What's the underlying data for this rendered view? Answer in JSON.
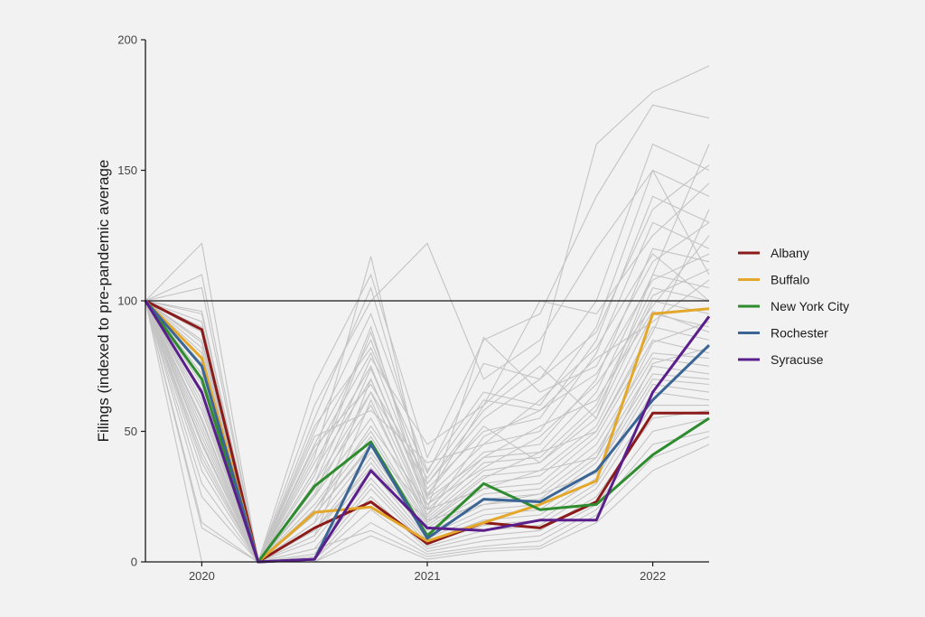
{
  "chart_data": {
    "type": "line",
    "ylabel": "Filings (indexed to pre-pandemic average",
    "xlabel": "",
    "ylim": [
      0,
      200
    ],
    "yticks": [
      0,
      50,
      100,
      150,
      200
    ],
    "xlim": [
      2019.75,
      2022.25
    ],
    "xticks": [
      2020,
      2021,
      2022
    ],
    "reference_line": 100,
    "grid": false,
    "legend_position": "right",
    "x": [
      2019.75,
      2020.0,
      2020.25,
      2020.5,
      2020.75,
      2021.0,
      2021.25,
      2021.5,
      2021.75,
      2022.0,
      2022.25
    ],
    "series": [
      {
        "name": "Albany",
        "color": "#8b1a1a",
        "values": [
          100,
          89,
          0,
          13,
          23,
          7,
          15,
          13,
          23,
          57,
          57
        ]
      },
      {
        "name": "Buffalo",
        "color": "#e3a82b",
        "values": [
          100,
          78,
          0,
          19,
          21,
          8,
          15,
          22,
          31,
          95,
          97
        ]
      },
      {
        "name": "New York City",
        "color": "#2e8b2e",
        "values": [
          100,
          70,
          0,
          29,
          46,
          10,
          30,
          20,
          22,
          41,
          55
        ]
      },
      {
        "name": "Rochester",
        "color": "#3a6595",
        "values": [
          100,
          75,
          0,
          1,
          45,
          9,
          24,
          23,
          35,
          62,
          83
        ]
      },
      {
        "name": "Syracuse",
        "color": "#5b1f8c",
        "values": [
          100,
          65,
          0,
          1,
          35,
          13,
          12,
          16,
          16,
          65,
          94
        ]
      }
    ],
    "background_series": [
      [
        100,
        122,
        0,
        40,
        117,
        25,
        60,
        80,
        160,
        180,
        190
      ],
      [
        100,
        110,
        0,
        68,
        110,
        40,
        85,
        95,
        140,
        175,
        170
      ],
      [
        100,
        95,
        0,
        55,
        105,
        30,
        55,
        70,
        100,
        160,
        150
      ],
      [
        100,
        90,
        0,
        50,
        95,
        35,
        65,
        60,
        90,
        150,
        140
      ],
      [
        100,
        85,
        0,
        45,
        85,
        28,
        50,
        55,
        85,
        140,
        130
      ],
      [
        100,
        80,
        0,
        42,
        80,
        25,
        45,
        50,
        80,
        130,
        120
      ],
      [
        100,
        75,
        0,
        38,
        75,
        22,
        42,
        45,
        70,
        120,
        115
      ],
      [
        100,
        70,
        0,
        35,
        70,
        20,
        40,
        42,
        65,
        110,
        105
      ],
      [
        100,
        68,
        0,
        30,
        65,
        18,
        38,
        40,
        60,
        105,
        100
      ],
      [
        100,
        65,
        0,
        28,
        60,
        17,
        35,
        38,
        55,
        100,
        95
      ],
      [
        100,
        62,
        0,
        25,
        55,
        16,
        33,
        35,
        52,
        95,
        90
      ],
      [
        100,
        60,
        0,
        22,
        50,
        15,
        30,
        33,
        50,
        90,
        85
      ],
      [
        100,
        58,
        0,
        20,
        48,
        14,
        28,
        30,
        48,
        85,
        80
      ],
      [
        100,
        55,
        0,
        18,
        45,
        13,
        26,
        28,
        45,
        80,
        78
      ],
      [
        100,
        52,
        0,
        15,
        42,
        12,
        24,
        26,
        42,
        78,
        75
      ],
      [
        100,
        50,
        0,
        12,
        40,
        11,
        22,
        24,
        40,
        75,
        72
      ],
      [
        100,
        48,
        0,
        10,
        38,
        10,
        20,
        22,
        38,
        72,
        70
      ],
      [
        100,
        45,
        0,
        8,
        35,
        9,
        18,
        20,
        35,
        70,
        68
      ],
      [
        100,
        42,
        0,
        5,
        32,
        8,
        16,
        18,
        32,
        68,
        65
      ],
      [
        100,
        40,
        0,
        3,
        30,
        7,
        14,
        16,
        30,
        65,
        62
      ],
      [
        100,
        35,
        0,
        2,
        28,
        6,
        12,
        14,
        28,
        60,
        60
      ],
      [
        100,
        30,
        0,
        1,
        25,
        5,
        10,
        12,
        25,
        55,
        58
      ],
      [
        100,
        25,
        0,
        1,
        20,
        4,
        8,
        10,
        22,
        50,
        55
      ],
      [
        100,
        15,
        0,
        0,
        15,
        3,
        6,
        8,
        20,
        45,
        50
      ],
      [
        100,
        13,
        0,
        5,
        12,
        2,
        5,
        6,
        18,
        40,
        48
      ],
      [
        100,
        0,
        0,
        0,
        10,
        1,
        4,
        5,
        15,
        35,
        45
      ],
      [
        100,
        105,
        0,
        60,
        100,
        122,
        70,
        85,
        120,
        150,
        110
      ],
      [
        100,
        88,
        0,
        35,
        90,
        20,
        86,
        65,
        75,
        115,
        130
      ],
      [
        100,
        72,
        0,
        30,
        78,
        45,
        60,
        100,
        95,
        125,
        145
      ],
      [
        100,
        66,
        0,
        25,
        65,
        30,
        58,
        75,
        55,
        110,
        160
      ],
      [
        100,
        82,
        0,
        48,
        58,
        38,
        45,
        62,
        82,
        118,
        100
      ],
      [
        100,
        92,
        0,
        20,
        52,
        22,
        36,
        48,
        68,
        98,
        125
      ],
      [
        100,
        76,
        0,
        15,
        70,
        18,
        48,
        58,
        78,
        92,
        108
      ],
      [
        100,
        58,
        0,
        10,
        62,
        15,
        32,
        42,
        50,
        88,
        135
      ],
      [
        100,
        64,
        0,
        33,
        88,
        26,
        52,
        38,
        58,
        102,
        112
      ],
      [
        100,
        54,
        0,
        26,
        74,
        24,
        40,
        52,
        62,
        96,
        88
      ],
      [
        100,
        46,
        0,
        18,
        44,
        20,
        28,
        35,
        40,
        84,
        92
      ],
      [
        100,
        38,
        0,
        12,
        36,
        16,
        22,
        26,
        34,
        76,
        82
      ],
      [
        100,
        84,
        0,
        52,
        82,
        34,
        76,
        70,
        88,
        135,
        152
      ],
      [
        100,
        96,
        0,
        44,
        68,
        32,
        62,
        58,
        72,
        108,
        118
      ]
    ]
  }
}
